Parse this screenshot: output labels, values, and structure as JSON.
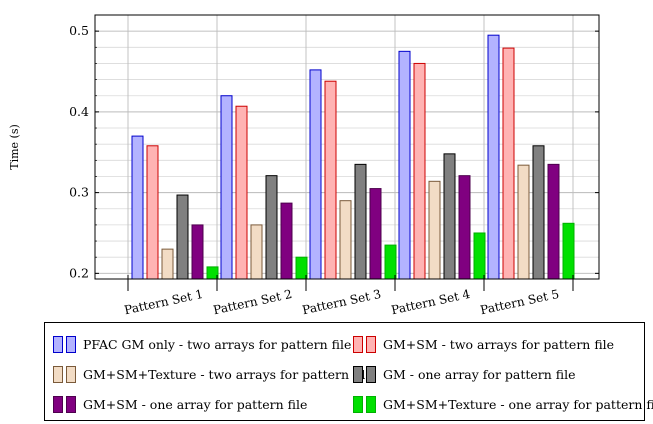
{
  "chart_data": {
    "type": "bar",
    "ylabel": "Time (s)",
    "xlabel": "",
    "title": "",
    "ylim": [
      0.193,
      0.52
    ],
    "yticks": [
      0.2,
      0.3,
      0.4,
      0.5
    ],
    "ytick_labels": [
      "0.2",
      "0.3",
      "0.4",
      "0.5"
    ],
    "grid": true,
    "legend_position": "bottom",
    "categories": [
      "Pattern Set 1",
      "Pattern Set 2",
      "Pattern Set 3",
      "Pattern Set 4",
      "Pattern Set 5"
    ],
    "series": [
      {
        "name": "PFAC GM only - two arrays for pattern file",
        "fill": "#b3b3ff",
        "stroke": "#0000cc",
        "values": [
          0.37,
          0.42,
          0.452,
          0.475,
          0.495
        ]
      },
      {
        "name": "GM+SM - two arrays for pattern file",
        "fill": "#ffb3b3",
        "stroke": "#cc0000",
        "values": [
          0.358,
          0.407,
          0.438,
          0.46,
          0.479
        ]
      },
      {
        "name": "GM+SM+Texture - two arrays for pattern file",
        "fill": "#f2dcc5",
        "stroke": "#7a5a3a",
        "values": [
          0.23,
          0.26,
          0.29,
          0.314,
          0.334
        ]
      },
      {
        "name": "GM - one array for pattern file",
        "fill": "#808080",
        "stroke": "#000000",
        "values": [
          0.297,
          0.321,
          0.335,
          0.348,
          0.358
        ]
      },
      {
        "name": "GM+SM - one array for pattern file",
        "fill": "#800080",
        "stroke": "#4d004d",
        "values": [
          0.26,
          0.287,
          0.305,
          0.321,
          0.335
        ]
      },
      {
        "name": "GM+SM+Texture - one array for pattern file",
        "fill": "#00e000",
        "stroke": "#00b000",
        "values": [
          0.208,
          0.22,
          0.235,
          0.25,
          0.262
        ]
      }
    ]
  }
}
